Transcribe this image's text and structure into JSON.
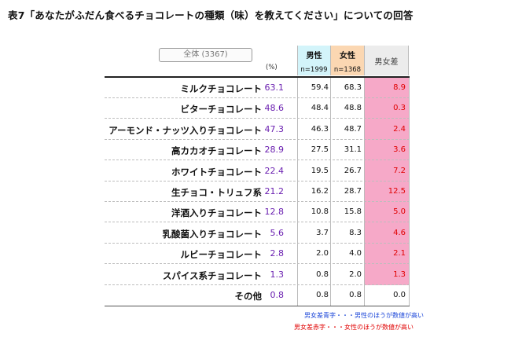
{
  "title": "表7「あなたがふだん食べるチョコレートの種類（味）を教えてください」についての回答",
  "header": {
    "total_label": "全体 (3367)",
    "pct_label": "(%)",
    "male_label": "男性",
    "male_n": "n=1999",
    "female_label": "女性",
    "female_n": "n=1368",
    "diff_label": "男女差"
  },
  "chart_data": {
    "type": "table",
    "columns": [
      "全体",
      "男性",
      "女性",
      "男女差"
    ],
    "rows": [
      {
        "label": "ミルクチョコレート",
        "total": "63.1",
        "male": "59.4",
        "female": "68.3",
        "diff": "8.9",
        "diff_color": "red"
      },
      {
        "label": "ビターチョコレート",
        "total": "48.6",
        "male": "48.4",
        "female": "48.8",
        "diff": "0.3",
        "diff_color": "red"
      },
      {
        "label": "アーモンド・ナッツ入りチョコレート",
        "total": "47.3",
        "male": "46.3",
        "female": "48.7",
        "diff": "2.4",
        "diff_color": "red"
      },
      {
        "label": "高カカオチョコレート",
        "total": "28.9",
        "male": "27.5",
        "female": "31.1",
        "diff": "3.6",
        "diff_color": "red"
      },
      {
        "label": "ホワイトチョコレート",
        "total": "22.4",
        "male": "19.5",
        "female": "26.7",
        "diff": "7.2",
        "diff_color": "red"
      },
      {
        "label": "生チョコ・トリュフ系",
        "total": "21.2",
        "male": "16.2",
        "female": "28.7",
        "diff": "12.5",
        "diff_color": "red"
      },
      {
        "label": "洋酒入りチョコレート",
        "total": "12.8",
        "male": "10.8",
        "female": "15.8",
        "diff": "5.0",
        "diff_color": "red"
      },
      {
        "label": "乳酸菌入りチョコレート",
        "total": "5.6",
        "male": "3.7",
        "female": "8.3",
        "diff": "4.6",
        "diff_color": "red"
      },
      {
        "label": "ルビーチョコレート",
        "total": "2.8",
        "male": "2.0",
        "female": "4.0",
        "diff": "2.1",
        "diff_color": "red"
      },
      {
        "label": "スパイス系チョコレート",
        "total": "1.3",
        "male": "0.8",
        "female": "2.0",
        "diff": "1.3",
        "diff_color": "red"
      },
      {
        "label": "その他",
        "total": "0.8",
        "male": "0.8",
        "female": "0.8",
        "diff": "0.0",
        "diff_color": "black"
      }
    ]
  },
  "notes": {
    "blue": "男女差青字・・・男性のほうが数値が高い",
    "red": "男女差赤字・・・女性のほうが数値が高い"
  },
  "colors": {
    "male_header_bg": "#d3f4fa",
    "female_header_bg": "#fbd7b2",
    "diff_header_bg": "#ececec",
    "diff_highlight_bg": "#f6a9c8",
    "diff_red": "#e00000",
    "total_purple": "#6a1fb0",
    "note_blue": "#1a45d8"
  }
}
